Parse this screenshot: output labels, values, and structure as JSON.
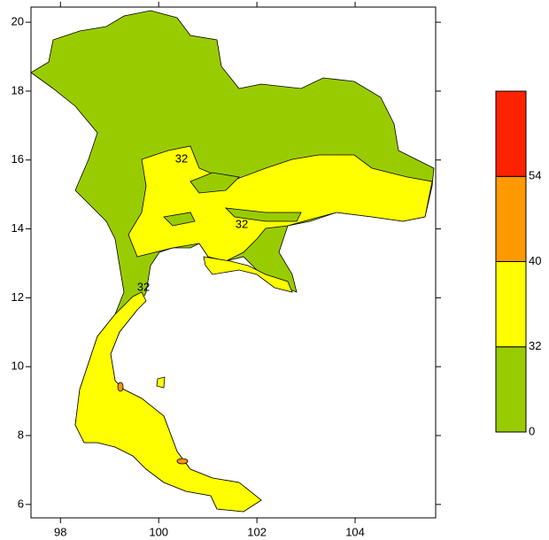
{
  "chart_data": {
    "type": "map",
    "xlim": [
      97.4,
      105.64
    ],
    "ylim": [
      5.61,
      20.44
    ],
    "xticks": [
      98,
      100,
      102,
      104
    ],
    "yticks": [
      6,
      8,
      10,
      12,
      14,
      16,
      18,
      20
    ],
    "colorbar": {
      "levels": [
        0,
        32,
        40,
        54
      ],
      "colors": [
        "#99cc00",
        "#ffff00",
        "#ff9900",
        "#ff2200"
      ]
    },
    "contour_labels": [
      "32",
      "32",
      "32"
    ]
  }
}
